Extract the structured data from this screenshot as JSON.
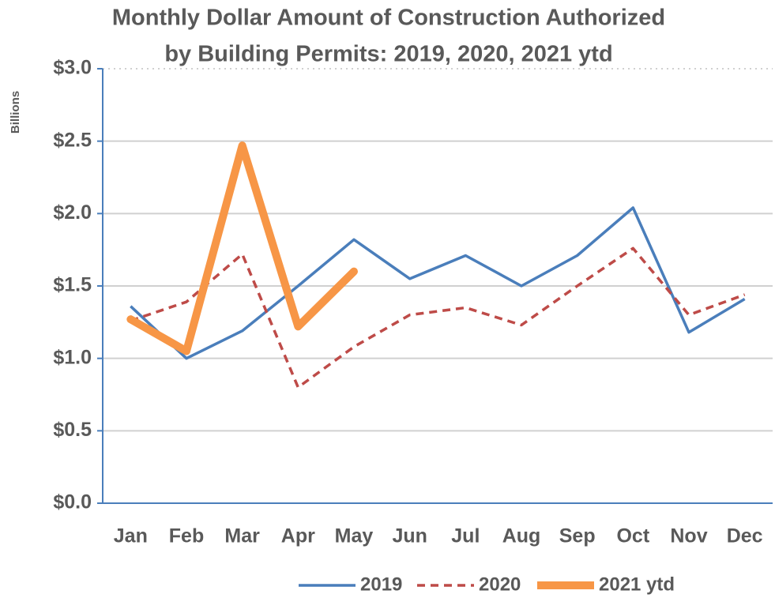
{
  "chart_data": {
    "type": "line",
    "title": [
      "Monthly Dollar Amount of Construction Authorized",
      "by Building Permits: 2019, 2020, 2021 ytd"
    ],
    "y_label": "Billions",
    "categories": [
      "Jan",
      "Feb",
      "Mar",
      "Apr",
      "May",
      "Jun",
      "Jul",
      "Aug",
      "Sep",
      "Oct",
      "Nov",
      "Dec"
    ],
    "series": [
      {
        "name": "2019",
        "color": "#4a7ebb",
        "style": "solid",
        "values": [
          1.36,
          1.0,
          1.19,
          1.5,
          1.82,
          1.55,
          1.71,
          1.5,
          1.71,
          2.04,
          1.18,
          1.41
        ]
      },
      {
        "name": "2020",
        "color": "#be4b48",
        "style": "dashed",
        "values": [
          1.26,
          1.39,
          1.72,
          0.8,
          1.08,
          1.3,
          1.35,
          1.23,
          1.5,
          1.76,
          1.3,
          1.44
        ]
      },
      {
        "name": "2021 ytd",
        "color": "#f79646",
        "style": "thick",
        "values": [
          1.27,
          1.05,
          2.47,
          1.22,
          1.6,
          null,
          null,
          null,
          null,
          null,
          null,
          null
        ]
      }
    ],
    "ylim": [
      0,
      3
    ],
    "yticks": [
      {
        "value": 0,
        "label": "$0.0"
      },
      {
        "value": 0.5,
        "label": "$0.5"
      },
      {
        "value": 1,
        "label": "$1.0"
      },
      {
        "value": 1.5,
        "label": "$1.5"
      },
      {
        "value": 2,
        "label": "$2.0"
      },
      {
        "value": 2.5,
        "label": "$2.5"
      },
      {
        "value": 3,
        "label": "$3.0"
      }
    ],
    "grid": true,
    "legend": "bottom"
  }
}
